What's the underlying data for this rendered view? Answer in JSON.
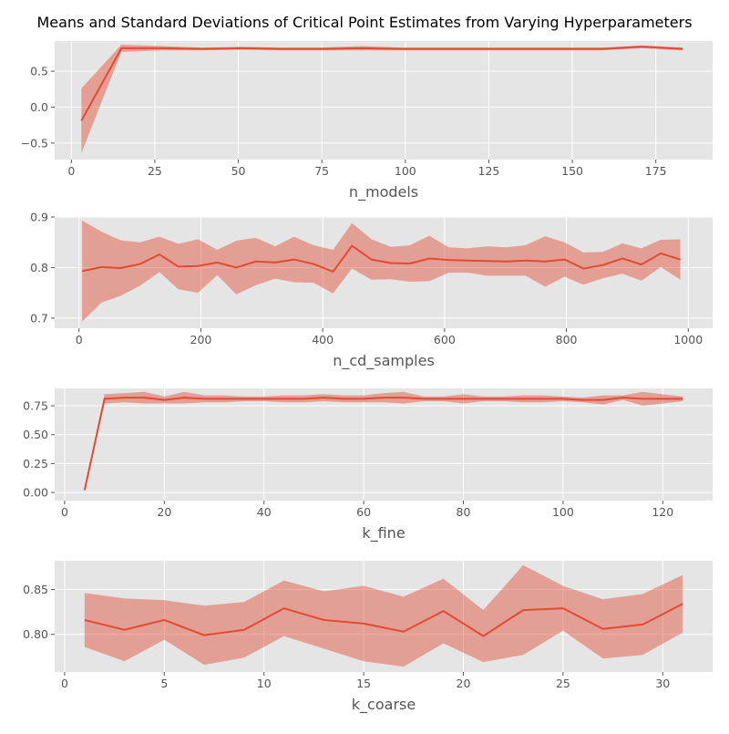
{
  "title": "Means and Standard Deviations of Critical Point Estimates from Varying Hyperparameters",
  "colors": {
    "background": "#ffffff",
    "panel": "#E5E5E5",
    "grid": "#ffffff",
    "line": "#E24A33",
    "band": "#E24A33"
  },
  "chart_data": [
    {
      "type": "line",
      "xlabel": "n_models",
      "ylabel": "",
      "xlim": [
        -5,
        192
      ],
      "ylim": [
        -0.73,
        0.92
      ],
      "xticks": [
        0,
        25,
        50,
        75,
        100,
        125,
        150,
        175
      ],
      "yticks": [
        -0.5,
        0.0,
        0.5
      ],
      "ytick_labels": [
        "−0.5",
        "0.0",
        "0.5"
      ],
      "grid": true,
      "series": [
        {
          "x": [
            3,
            15,
            27,
            39,
            51,
            63,
            75,
            87,
            99,
            111,
            123,
            135,
            147,
            159,
            171,
            183
          ],
          "mean": [
            -0.19,
            0.82,
            0.82,
            0.81,
            0.82,
            0.81,
            0.81,
            0.82,
            0.81,
            0.81,
            0.81,
            0.81,
            0.81,
            0.81,
            0.84,
            0.81
          ],
          "std": [
            0.45,
            0.05,
            0.03,
            0.02,
            0.02,
            0.02,
            0.02,
            0.03,
            0.02,
            0.02,
            0.02,
            0.02,
            0.02,
            0.02,
            0.02,
            0.02
          ]
        }
      ]
    },
    {
      "type": "line",
      "xlabel": "n_cd_samples",
      "ylabel": "",
      "xlim": [
        -40,
        1040
      ],
      "ylim": [
        0.68,
        0.9
      ],
      "xticks": [
        0,
        200,
        400,
        600,
        800,
        1000
      ],
      "yticks": [
        0.7,
        0.8,
        0.9
      ],
      "ytick_labels": [
        "0.7",
        "0.8",
        "0.9"
      ],
      "grid": true,
      "series": [
        {
          "x": [
            5,
            37,
            68,
            100,
            132,
            163,
            195,
            227,
            258,
            290,
            322,
            353,
            385,
            417,
            448,
            480,
            512,
            543,
            575,
            607,
            638,
            670,
            702,
            733,
            765,
            797,
            828,
            860,
            892,
            923,
            955,
            987
          ],
          "mean": [
            0.793,
            0.801,
            0.799,
            0.807,
            0.826,
            0.802,
            0.803,
            0.81,
            0.8,
            0.812,
            0.81,
            0.816,
            0.807,
            0.792,
            0.843,
            0.816,
            0.809,
            0.808,
            0.818,
            0.815,
            0.814,
            0.813,
            0.812,
            0.814,
            0.812,
            0.816,
            0.798,
            0.805,
            0.818,
            0.806,
            0.828,
            0.816
          ],
          "std": [
            0.1,
            0.07,
            0.055,
            0.043,
            0.035,
            0.045,
            0.053,
            0.025,
            0.053,
            0.047,
            0.032,
            0.045,
            0.037,
            0.043,
            0.045,
            0.04,
            0.032,
            0.036,
            0.045,
            0.025,
            0.024,
            0.029,
            0.028,
            0.03,
            0.05,
            0.034,
            0.032,
            0.026,
            0.03,
            0.032,
            0.027,
            0.04
          ]
        }
      ]
    },
    {
      "type": "line",
      "xlabel": "k_fine",
      "ylabel": "",
      "xlim": [
        -2,
        130
      ],
      "ylim": [
        -0.07,
        0.9
      ],
      "xticks": [
        0,
        20,
        40,
        60,
        80,
        100,
        120
      ],
      "yticks": [
        0.0,
        0.25,
        0.5,
        0.75
      ],
      "ytick_labels": [
        "0.00",
        "0.25",
        "0.50",
        "0.75"
      ],
      "grid": true,
      "series": [
        {
          "x": [
            4,
            8,
            12,
            16,
            20,
            24,
            28,
            32,
            36,
            40,
            44,
            48,
            52,
            56,
            60,
            64,
            68,
            72,
            76,
            80,
            84,
            88,
            92,
            96,
            100,
            104,
            108,
            112,
            116,
            120,
            124
          ],
          "mean": [
            0.02,
            0.81,
            0.82,
            0.82,
            0.8,
            0.82,
            0.81,
            0.81,
            0.81,
            0.81,
            0.81,
            0.81,
            0.82,
            0.81,
            0.81,
            0.82,
            0.82,
            0.81,
            0.81,
            0.81,
            0.81,
            0.81,
            0.81,
            0.81,
            0.81,
            0.8,
            0.8,
            0.82,
            0.81,
            0.81,
            0.81
          ],
          "std": [
            0.01,
            0.04,
            0.04,
            0.05,
            0.03,
            0.05,
            0.03,
            0.03,
            0.02,
            0.02,
            0.03,
            0.03,
            0.03,
            0.03,
            0.03,
            0.04,
            0.05,
            0.02,
            0.02,
            0.04,
            0.02,
            0.02,
            0.03,
            0.03,
            0.02,
            0.02,
            0.04,
            0.02,
            0.06,
            0.04,
            0.02
          ]
        }
      ]
    },
    {
      "type": "line",
      "xlabel": "k_coarse",
      "ylabel": "",
      "xlim": [
        -0.5,
        32.5
      ],
      "ylim": [
        0.758,
        0.882
      ],
      "xticks": [
        0,
        5,
        10,
        15,
        20,
        25,
        30
      ],
      "yticks": [
        0.8,
        0.85
      ],
      "ytick_labels": [
        "0.80",
        "0.85"
      ],
      "grid": true,
      "series": [
        {
          "x": [
            1,
            3,
            5,
            7,
            9,
            11,
            13,
            15,
            17,
            19,
            21,
            23,
            25,
            27,
            29,
            31
          ],
          "mean": [
            0.816,
            0.805,
            0.816,
            0.799,
            0.805,
            0.829,
            0.816,
            0.812,
            0.803,
            0.826,
            0.798,
            0.827,
            0.829,
            0.806,
            0.811,
            0.834
          ],
          "std": [
            0.03,
            0.035,
            0.022,
            0.033,
            0.031,
            0.031,
            0.032,
            0.042,
            0.039,
            0.036,
            0.029,
            0.05,
            0.025,
            0.033,
            0.034,
            0.032
          ]
        }
      ]
    }
  ]
}
